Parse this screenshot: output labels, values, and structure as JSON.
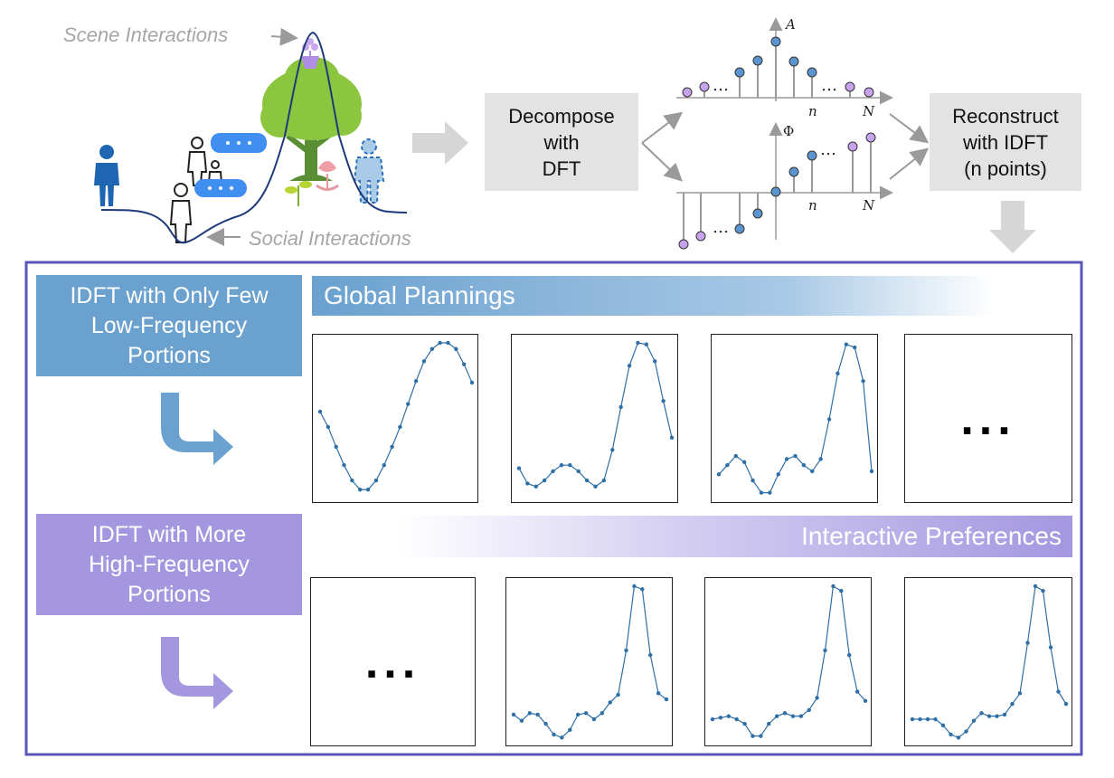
{
  "top": {
    "scene_label": "Scene Interactions",
    "social_label": "Social Interactions",
    "decompose": [
      "Decompose",
      "with",
      "DFT"
    ],
    "reconstruct": [
      "Reconstruct",
      "with IDFT",
      "(n points)"
    ],
    "amp_axis": "A",
    "phase_axis": "Φ",
    "n_label": "n",
    "N_label": "N",
    "dots": "…"
  },
  "bottom": {
    "low_box": [
      "IDFT with Only Few",
      "Low-Frequency",
      "Portions"
    ],
    "high_box": [
      "IDFT with More",
      "High-Frequency",
      "Portions"
    ],
    "global_banner": "Global Plannings",
    "interactive_banner": "Interactive Preferences",
    "ellipsis": "..."
  },
  "colors": {
    "blue_box": "#6aa1cf",
    "purple_box": "#a497e0",
    "frame_border": "#6a5ec2",
    "curve": "#2e6fa6",
    "stem_blue": "#5b95cf",
    "stem_purple": "#c7a2ee"
  },
  "chart_data": [
    {
      "type": "line",
      "name": "low1",
      "y": [
        0.55,
        0.45,
        0.32,
        0.2,
        0.1,
        0.04,
        0.04,
        0.1,
        0.2,
        0.32,
        0.45,
        0.6,
        0.75,
        0.88,
        0.96,
        1.0,
        1.0,
        0.96,
        0.86,
        0.74
      ]
    },
    {
      "type": "line",
      "name": "low2",
      "y": [
        0.18,
        0.08,
        0.06,
        0.1,
        0.16,
        0.2,
        0.2,
        0.16,
        0.1,
        0.06,
        0.1,
        0.3,
        0.58,
        0.85,
        1.0,
        0.99,
        0.88,
        0.62,
        0.38
      ]
    },
    {
      "type": "line",
      "name": "low3",
      "y": [
        0.14,
        0.2,
        0.26,
        0.22,
        0.1,
        0.02,
        0.02,
        0.14,
        0.24,
        0.26,
        0.2,
        0.16,
        0.24,
        0.5,
        0.8,
        0.99,
        0.97,
        0.75,
        0.16
      ]
    },
    {
      "type": "line",
      "name": "high1",
      "y": [
        0.16,
        0.12,
        0.17,
        0.16,
        0.1,
        0.03,
        0.01,
        0.06,
        0.16,
        0.17,
        0.13,
        0.17,
        0.24,
        0.29,
        0.58,
        1.0,
        0.98,
        0.55,
        0.3,
        0.26
      ]
    },
    {
      "type": "line",
      "name": "high2",
      "y": [
        0.13,
        0.14,
        0.15,
        0.13,
        0.1,
        0.02,
        0.02,
        0.1,
        0.15,
        0.17,
        0.15,
        0.15,
        0.19,
        0.27,
        0.58,
        1.0,
        0.97,
        0.55,
        0.31,
        0.25
      ]
    },
    {
      "type": "line",
      "name": "high3",
      "y": [
        0.13,
        0.13,
        0.13,
        0.13,
        0.09,
        0.03,
        0.01,
        0.05,
        0.12,
        0.17,
        0.15,
        0.15,
        0.16,
        0.23,
        0.3,
        0.63,
        1.0,
        0.97,
        0.6,
        0.31,
        0.23
      ]
    }
  ]
}
